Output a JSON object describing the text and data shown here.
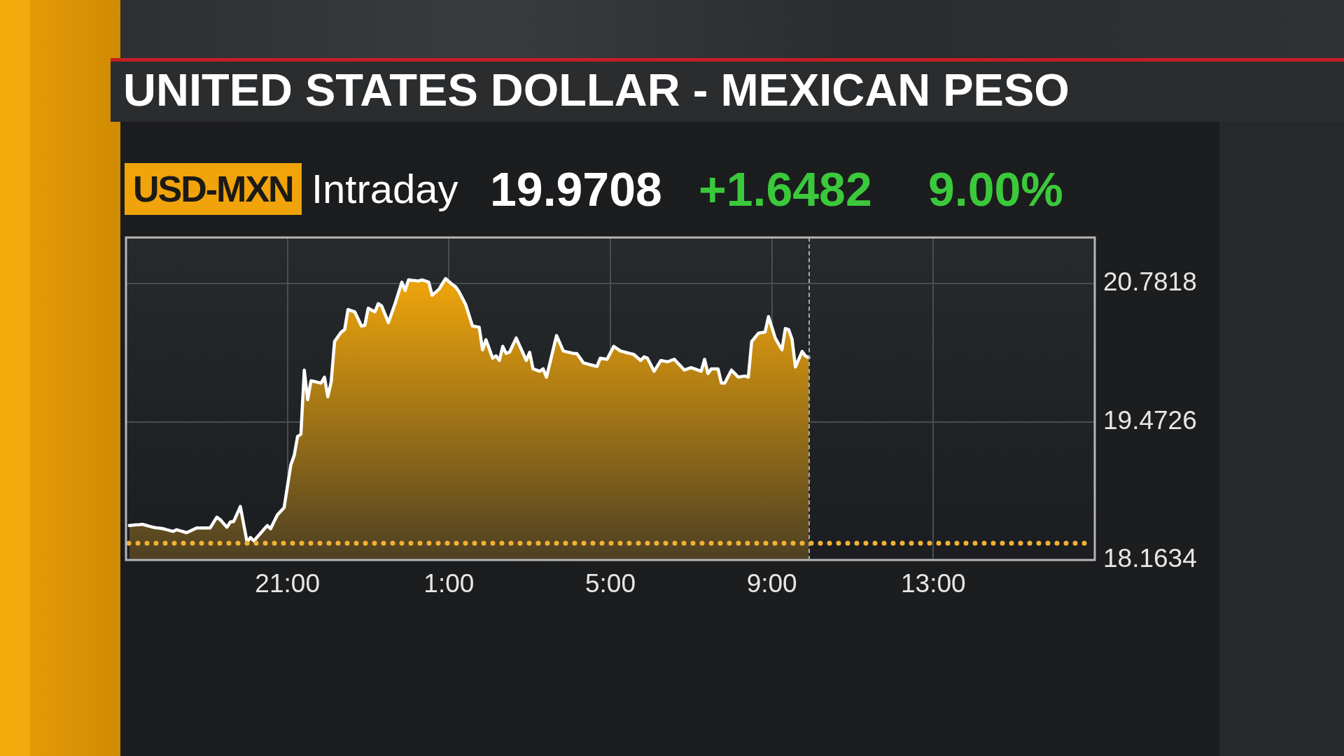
{
  "chart_data": {
    "type": "area",
    "title": "UNITED STATES DOLLAR - MEXICAN PESO",
    "subtitle": "USD-MXN",
    "annotations": [
      "Intraday",
      "19.9708",
      "+1.6482",
      "9.00%"
    ],
    "categories": [
      null,
      null,
      null,
      null,
      null,
      null,
      null,
      null,
      null,
      null,
      null,
      null,
      null,
      null,
      null,
      null,
      null,
      null,
      null,
      null,
      null,
      null,
      null,
      null,
      null,
      null,
      null,
      null,
      null,
      null,
      null,
      null,
      null,
      null,
      null,
      null,
      null,
      null,
      null,
      null,
      null,
      null,
      null,
      null,
      null,
      null,
      null,
      null,
      "21:00",
      null,
      null,
      null,
      null,
      null,
      null,
      null,
      null,
      null,
      null,
      null,
      null,
      null,
      null,
      null,
      null,
      null,
      null,
      null,
      null,
      null,
      null,
      null,
      null,
      null,
      null,
      null,
      null,
      null,
      null,
      null,
      null,
      null,
      null,
      null,
      null,
      null,
      null,
      null,
      null,
      null,
      null,
      null,
      null,
      null,
      null,
      null,
      "1:00",
      null,
      null,
      null,
      null,
      null,
      null,
      null,
      null,
      null,
      null,
      null,
      null,
      null,
      null,
      null,
      null,
      null,
      null,
      null,
      null,
      null,
      null,
      null,
      null,
      null,
      null,
      null,
      null,
      null,
      null,
      null,
      null,
      null,
      null,
      null,
      null,
      null,
      null,
      null,
      null,
      null,
      null,
      null,
      null,
      null,
      null,
      null,
      "5:00",
      null,
      null,
      null,
      null,
      null,
      null,
      null,
      null,
      null,
      null,
      null,
      null,
      null,
      null,
      null,
      null,
      null,
      null,
      null,
      null,
      null,
      null,
      null,
      null,
      null,
      null,
      null,
      null,
      null,
      null,
      null,
      null,
      null,
      null,
      null,
      null,
      null,
      null,
      null,
      null,
      null,
      null,
      null,
      null,
      null,
      null,
      null,
      "9:00",
      null,
      null,
      null,
      null,
      null,
      null,
      null,
      null,
      null,
      null,
      null,
      null,
      null,
      null,
      null,
      null,
      null,
      null,
      null,
      null,
      null,
      null,
      null,
      null,
      null,
      null,
      null,
      null,
      null,
      null,
      null,
      null,
      null,
      null,
      null,
      null,
      null,
      null,
      null,
      null,
      null,
      null,
      null,
      null,
      null,
      null,
      null,
      "13:00",
      null,
      null,
      null,
      null,
      null,
      null,
      null,
      null,
      null,
      null,
      null,
      null,
      null,
      null,
      null,
      null,
      null,
      null,
      null,
      null,
      null,
      null,
      null,
      null,
      null,
      null,
      null,
      null,
      null,
      null,
      null,
      null,
      null,
      null,
      null,
      null,
      null,
      null,
      null,
      null,
      null,
      null,
      null,
      null,
      null,
      null,
      null,
      null
    ],
    "values": [
      null,
      18.49,
      18.493,
      18.496,
      18.498,
      18.501,
      18.492,
      18.483,
      18.474,
      18.469,
      18.465,
      18.46,
      18.451,
      18.443,
      18.434,
      18.451,
      18.441,
      18.432,
      18.422,
      18.437,
      18.452,
      18.467,
      18.467,
      18.467,
      18.467,
      18.467,
      18.518,
      18.569,
      18.546,
      18.51,
      18.474,
      18.523,
      18.528,
      18.599,
      18.67,
      18.501,
      18.332,
      18.377,
      18.344,
      18.381,
      18.417,
      18.454,
      18.49,
      18.46,
      18.526,
      18.591,
      18.625,
      18.659,
      18.862,
      19.064,
      19.153,
      19.333,
      19.356,
      19.963,
      19.682,
      19.862,
      19.855,
      19.847,
      19.84,
      19.896,
      19.711,
      19.851,
      20.234,
      20.279,
      20.324,
      20.346,
      20.537,
      20.526,
      20.515,
      20.448,
      20.38,
      20.387,
      20.549,
      20.532,
      20.515,
      20.593,
      20.57,
      20.492,
      20.413,
      20.503,
      20.593,
      20.695,
      20.796,
      20.718,
      20.818,
      20.814,
      20.811,
      20.807,
      20.818,
      20.807,
      20.796,
      20.672,
      20.7,
      20.728,
      20.779,
      20.83,
      20.802,
      20.774,
      20.751,
      20.706,
      20.644,
      20.582,
      20.481,
      20.38,
      20.375,
      20.369,
      20.155,
      20.251,
      20.164,
      20.076,
      20.098,
      20.054,
      20.188,
      20.121,
      20.132,
      20.2,
      20.267,
      20.196,
      20.125,
      20.054,
      20.132,
      19.975,
      19.964,
      19.952,
      19.975,
      19.896,
      20.027,
      20.159,
      20.29,
      20.217,
      20.144,
      20.136,
      20.129,
      20.121,
      20.121,
      20.076,
      20.031,
      20.023,
      20.014,
      20.006,
      19.997,
      20.076,
      20.071,
      20.065,
      20.127,
      20.188,
      20.166,
      20.144,
      20.136,
      20.127,
      20.119,
      20.11,
      20.082,
      20.054,
      20.088,
      20.076,
      20.014,
      19.952,
      20.003,
      20.054,
      20.048,
      20.042,
      20.054,
      20.065,
      20.031,
      19.997,
      19.963,
      19.975,
      19.986,
      19.975,
      19.963,
      19.952,
      20.065,
      19.93,
      19.975,
      19.975,
      19.975,
      19.84,
      19.84,
      19.902,
      19.963,
      19.93,
      19.896,
      19.902,
      19.907,
      19.896,
      20.234,
      20.273,
      20.312,
      20.318,
      20.324,
      20.47,
      20.369,
      20.267,
      20.211,
      20.155,
      20.357,
      20.346,
      20.256,
      19.993,
      20.066,
      20.139,
      20.096,
      20.081,
      null,
      null,
      null,
      null,
      null,
      null,
      null,
      null,
      null,
      null,
      null,
      null,
      null,
      null,
      null,
      null,
      null,
      null,
      null,
      null,
      null,
      null,
      null,
      null,
      null,
      null,
      null,
      null,
      null,
      null,
      null,
      null,
      null,
      null,
      null,
      null,
      null,
      null,
      null,
      null,
      null,
      null,
      null,
      null,
      null,
      null,
      null,
      null,
      null,
      null,
      null,
      null,
      null,
      null,
      null,
      null,
      null,
      null,
      null,
      null,
      null,
      null,
      null,
      null,
      null,
      null,
      null,
      null,
      null,
      null,
      null,
      null,
      null,
      null,
      null,
      null,
      null,
      null,
      null,
      null,
      null,
      null,
      null,
      null,
      null
    ],
    "color": "#eaa20c",
    "ylim": [
      18.1634,
      21.22
    ],
    "yticks": [
      18.1634,
      19.4726,
      20.7818
    ],
    "grid": true,
    "ref_lines": [
      {
        "axis": "y",
        "value": 18.3226,
        "color": "#f2b134",
        "line_style": "dotted"
      }
    ]
  }
}
